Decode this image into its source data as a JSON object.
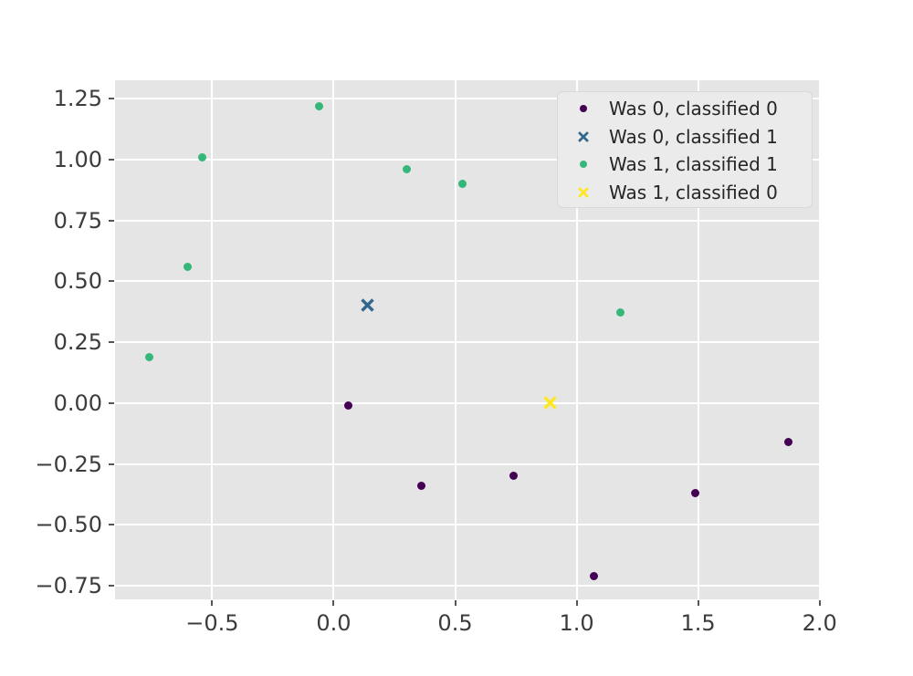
{
  "chart_data": {
    "type": "scatter",
    "title": "",
    "xlabel": "",
    "ylabel": "",
    "xlim": [
      -0.9,
      2.005
    ],
    "ylim": [
      -0.806,
      1.325
    ],
    "grid": true,
    "legend_position": "upper right",
    "x_ticks": [
      {
        "v": -0.5,
        "label": "−0.5"
      },
      {
        "v": 0.0,
        "label": "0.0"
      },
      {
        "v": 0.5,
        "label": "0.5"
      },
      {
        "v": 1.0,
        "label": "1.0"
      },
      {
        "v": 1.5,
        "label": "1.5"
      },
      {
        "v": 2.0,
        "label": "2.0"
      }
    ],
    "y_ticks": [
      {
        "v": -0.75,
        "label": "−0.75"
      },
      {
        "v": -0.5,
        "label": "−0.50"
      },
      {
        "v": -0.25,
        "label": "−0.25"
      },
      {
        "v": 0.0,
        "label": "0.00"
      },
      {
        "v": 0.25,
        "label": "0.25"
      },
      {
        "v": 0.5,
        "label": "0.50"
      },
      {
        "v": 0.75,
        "label": "0.75"
      },
      {
        "v": 1.0,
        "label": "1.00"
      },
      {
        "v": 1.25,
        "label": "1.25"
      }
    ],
    "series": [
      {
        "name": "Was 0, classified 0",
        "marker": "dot",
        "color": "#440154",
        "points": [
          [
            0.06,
            -0.01
          ],
          [
            0.36,
            -0.34
          ],
          [
            0.74,
            -0.3
          ],
          [
            1.07,
            -0.71
          ],
          [
            1.49,
            -0.37
          ],
          [
            1.87,
            -0.16
          ]
        ]
      },
      {
        "name": "Was 0, classified 1",
        "marker": "x",
        "color": "#31688e",
        "points": [
          [
            0.14,
            0.4
          ]
        ]
      },
      {
        "name": "Was 1, classified 1",
        "marker": "dot",
        "color": "#35b779",
        "points": [
          [
            -0.06,
            1.22
          ],
          [
            -0.54,
            1.01
          ],
          [
            0.3,
            0.96
          ],
          [
            0.53,
            0.9
          ],
          [
            -0.6,
            0.56
          ],
          [
            -0.76,
            0.19
          ],
          [
            1.18,
            0.37
          ]
        ]
      },
      {
        "name": "Was 1, classified 0",
        "marker": "x",
        "color": "#fde725",
        "points": [
          [
            0.89,
            0.0
          ]
        ]
      }
    ],
    "colors": {
      "figure_bg": "#ffffff",
      "plot_bg": "#e5e5e5",
      "gridline": "#ffffff",
      "tick": "#555555",
      "tick_label": "#3c3c3c",
      "legend_bg": "#ebebeb",
      "legend_border": "#d9d9d9",
      "legend_text": "#262626"
    }
  }
}
